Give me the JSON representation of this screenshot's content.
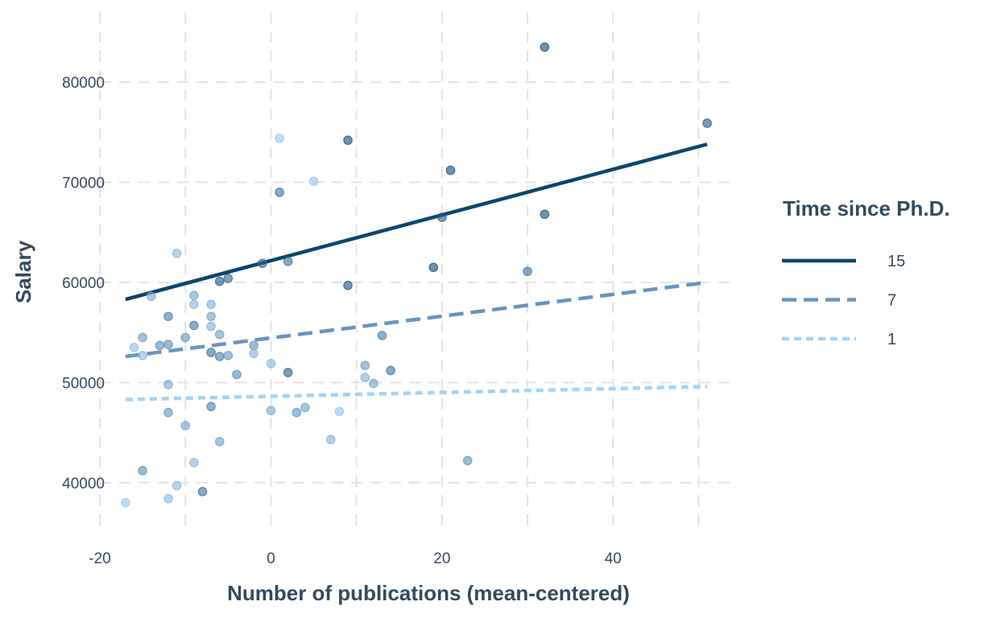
{
  "chart_data": {
    "type": "scatter",
    "xlabel": "Number of publications (mean-centered)",
    "ylabel": "Salary",
    "xlim": [
      -20,
      54
    ],
    "ylim": [
      35000,
      87000
    ],
    "x_ticks": [
      -20,
      0,
      20,
      40
    ],
    "x_tick_labels": [
      "-20",
      "0",
      "20",
      "40"
    ],
    "y_ticks": [
      40000,
      50000,
      60000,
      70000,
      80000
    ],
    "y_tick_labels": [
      "40000",
      "50000",
      "60000",
      "70000",
      "80000"
    ],
    "grid": true,
    "grid_style": "dashed",
    "legend": {
      "title": "Time since Ph.D.",
      "placement": "right",
      "items": [
        {
          "label": "15",
          "color": "#08456e",
          "dash": "solid"
        },
        {
          "label": "7",
          "color": "#6893c0",
          "dash": "dashed"
        },
        {
          "label": "1",
          "color": "#a3d2f7",
          "dash": "dotted"
        }
      ]
    },
    "lines": [
      {
        "name": "15",
        "color": "#08456e",
        "dash": "solid",
        "x": [
          -17,
          51
        ],
        "y": [
          58300,
          73800
        ]
      },
      {
        "name": "7",
        "color": "#6893c0",
        "dash": "dashed",
        "x": [
          -17,
          51
        ],
        "y": [
          52600,
          60000
        ]
      },
      {
        "name": "1",
        "color": "#a3d2f7",
        "dash": "dotted",
        "x": [
          -17,
          51
        ],
        "y": [
          48300,
          49600
        ]
      }
    ],
    "points": [
      {
        "x": 32,
        "y": 83500,
        "c": 0.95
      },
      {
        "x": 51,
        "y": 75900,
        "c": 0.85
      },
      {
        "x": 9,
        "y": 74200,
        "c": 0.95
      },
      {
        "x": 1,
        "y": 74400,
        "c": 0.1
      },
      {
        "x": 21,
        "y": 71200,
        "c": 0.95
      },
      {
        "x": 5,
        "y": 70100,
        "c": 0.1
      },
      {
        "x": 1,
        "y": 69000,
        "c": 0.7
      },
      {
        "x": 32,
        "y": 66800,
        "c": 0.95
      },
      {
        "x": 20,
        "y": 66500,
        "c": 0.85
      },
      {
        "x": -11,
        "y": 62900,
        "c": 0.2
      },
      {
        "x": 2,
        "y": 62100,
        "c": 0.7
      },
      {
        "x": -1,
        "y": 61900,
        "c": 0.75
      },
      {
        "x": 19,
        "y": 61500,
        "c": 0.95
      },
      {
        "x": 30,
        "y": 61100,
        "c": 0.7
      },
      {
        "x": -5,
        "y": 60400,
        "c": 0.75
      },
      {
        "x": -6,
        "y": 60100,
        "c": 0.85
      },
      {
        "x": 9,
        "y": 59700,
        "c": 0.9
      },
      {
        "x": -9,
        "y": 58700,
        "c": 0.35
      },
      {
        "x": -14,
        "y": 58600,
        "c": 0.3
      },
      {
        "x": -9,
        "y": 57800,
        "c": 0.2
      },
      {
        "x": -7,
        "y": 57800,
        "c": 0.25
      },
      {
        "x": -12,
        "y": 56600,
        "c": 0.6
      },
      {
        "x": -7,
        "y": 56600,
        "c": 0.35
      },
      {
        "x": -9,
        "y": 55700,
        "c": 0.65
      },
      {
        "x": -7,
        "y": 55600,
        "c": 0.25
      },
      {
        "x": -6,
        "y": 54800,
        "c": 0.35
      },
      {
        "x": 13,
        "y": 54700,
        "c": 0.6
      },
      {
        "x": -15,
        "y": 54500,
        "c": 0.4
      },
      {
        "x": -10,
        "y": 54500,
        "c": 0.45
      },
      {
        "x": -13,
        "y": 53700,
        "c": 0.5
      },
      {
        "x": -12,
        "y": 53800,
        "c": 0.5
      },
      {
        "x": -2,
        "y": 53700,
        "c": 0.45
      },
      {
        "x": -16,
        "y": 53500,
        "c": 0.15
      },
      {
        "x": -7,
        "y": 53000,
        "c": 0.7
      },
      {
        "x": -2,
        "y": 52900,
        "c": 0.25
      },
      {
        "x": -5,
        "y": 52700,
        "c": 0.4
      },
      {
        "x": -15,
        "y": 52700,
        "c": 0.2
      },
      {
        "x": -6,
        "y": 52600,
        "c": 0.6
      },
      {
        "x": 0,
        "y": 51900,
        "c": 0.2
      },
      {
        "x": 11,
        "y": 51700,
        "c": 0.4
      },
      {
        "x": 14,
        "y": 51200,
        "c": 0.7
      },
      {
        "x": 2,
        "y": 51000,
        "c": 0.8
      },
      {
        "x": -4,
        "y": 50800,
        "c": 0.5
      },
      {
        "x": 11,
        "y": 50500,
        "c": 0.25
      },
      {
        "x": 12,
        "y": 49900,
        "c": 0.35
      },
      {
        "x": -12,
        "y": 49800,
        "c": 0.3
      },
      {
        "x": -7,
        "y": 47600,
        "c": 0.6
      },
      {
        "x": 4,
        "y": 47500,
        "c": 0.35
      },
      {
        "x": 0,
        "y": 47200,
        "c": 0.3
      },
      {
        "x": 8,
        "y": 47100,
        "c": 0.1
      },
      {
        "x": -12,
        "y": 47000,
        "c": 0.45
      },
      {
        "x": 3,
        "y": 47000,
        "c": 0.45
      },
      {
        "x": -10,
        "y": 45700,
        "c": 0.35
      },
      {
        "x": 7,
        "y": 44300,
        "c": 0.25
      },
      {
        "x": -6,
        "y": 44100,
        "c": 0.35
      },
      {
        "x": 23,
        "y": 42200,
        "c": 0.45
      },
      {
        "x": -9,
        "y": 42000,
        "c": 0.2
      },
      {
        "x": -15,
        "y": 41200,
        "c": 0.5
      },
      {
        "x": -11,
        "y": 39700,
        "c": 0.2
      },
      {
        "x": -8,
        "y": 39100,
        "c": 0.7
      },
      {
        "x": -12,
        "y": 38400,
        "c": 0.2
      },
      {
        "x": -17,
        "y": 38000,
        "c": 0.1
      }
    ]
  }
}
